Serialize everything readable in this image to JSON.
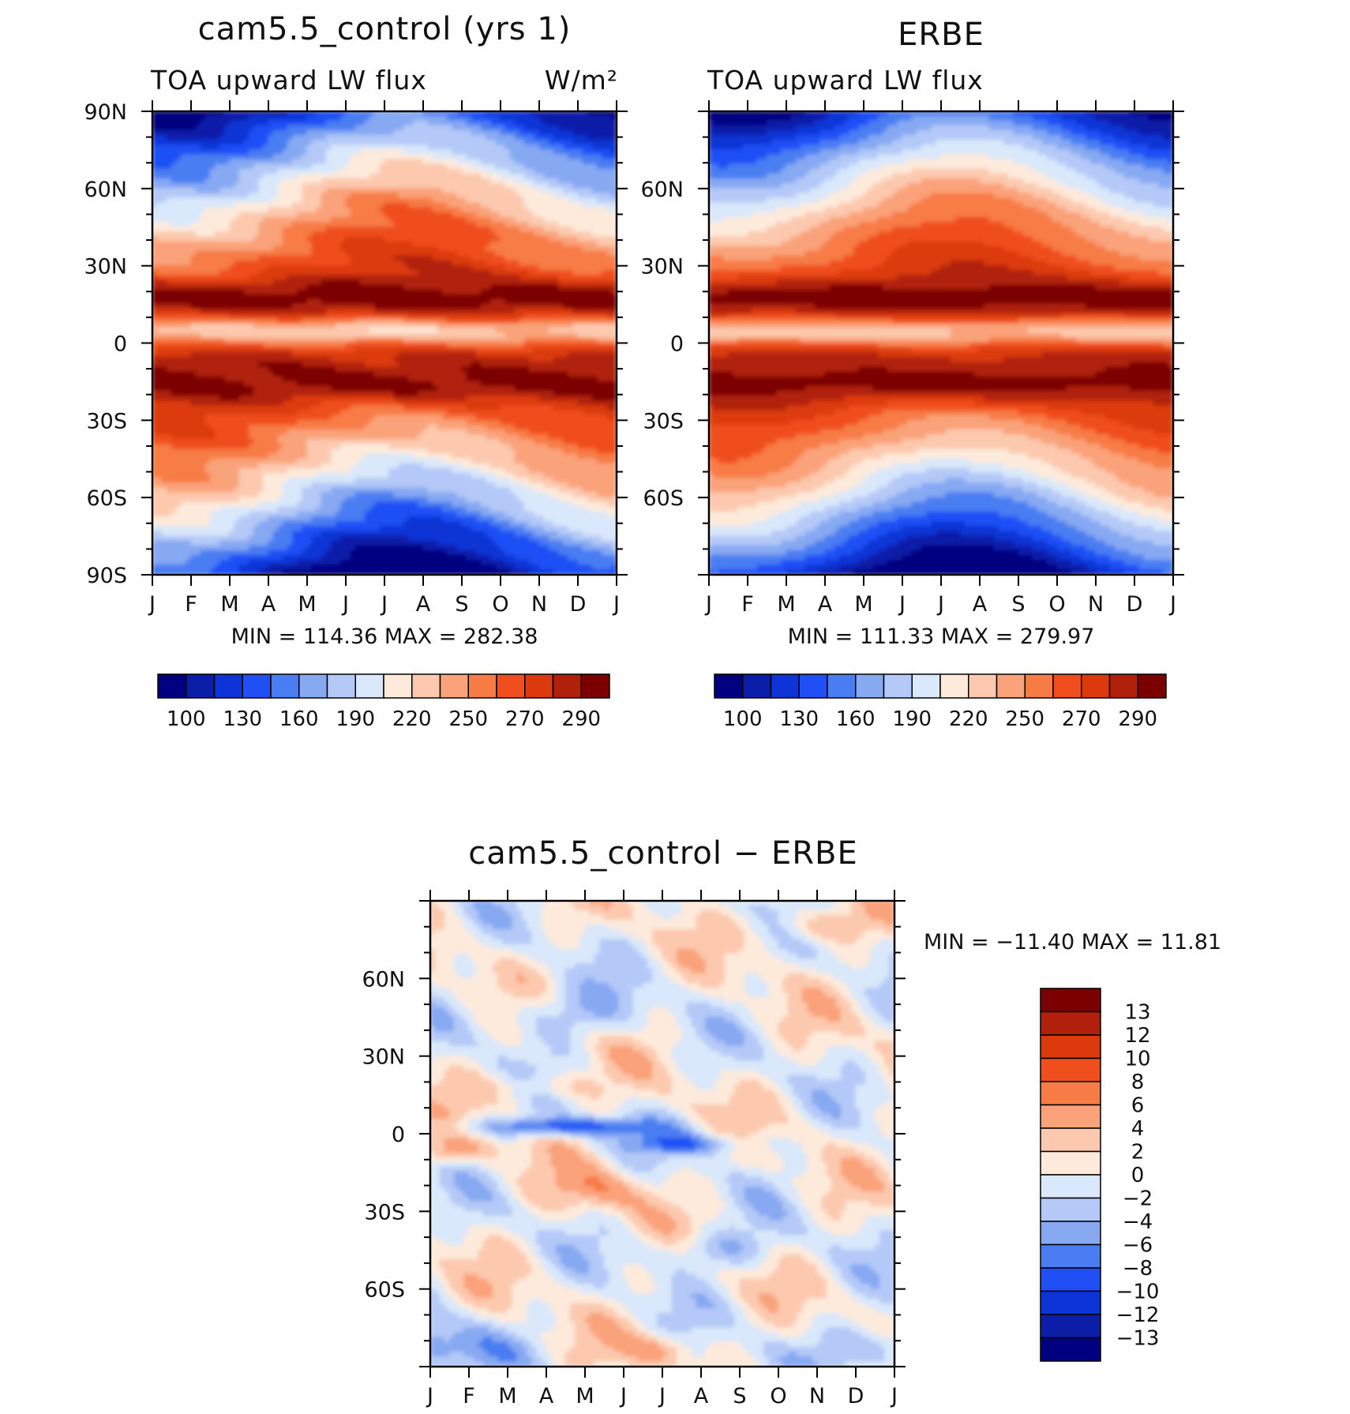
{
  "palette": [
    "#000080",
    "#0A1EA8",
    "#0D34D6",
    "#1F4FF5",
    "#4A7DF2",
    "#86A9F2",
    "#B4C9F7",
    "#D9E8FA",
    "#FDEADB",
    "#FCC9AE",
    "#FAA279",
    "#F77B45",
    "#F04E1D",
    "#DC3A0D",
    "#B0200B",
    "#7B0000"
  ],
  "chart_data": [
    {
      "type": "heatmap",
      "title": "cam5.5_control (yrs 1)",
      "left_label": "TOA upward LW flux",
      "right_label": "W/m²",
      "x_ticks": [
        "J",
        "F",
        "M",
        "A",
        "M",
        "J",
        "J",
        "A",
        "S",
        "O",
        "N",
        "D",
        "J"
      ],
      "y_ticks": [
        "90N",
        "60N",
        "30N",
        "0",
        "30S",
        "60S",
        "90S"
      ],
      "ylim": [
        -90,
        90
      ],
      "stats": "MIN = 114.36 MAX = 282.38",
      "min": 114.36,
      "max": 282.38,
      "colorbar_levels": [
        100,
        110,
        130,
        140,
        160,
        175,
        190,
        200,
        220,
        230,
        250,
        260,
        270,
        280,
        290
      ],
      "colorbar_labels": [
        "100",
        "130",
        "160",
        "190",
        "220",
        "250",
        "270",
        "290"
      ],
      "colorbar_orientation": "horizontal"
    },
    {
      "type": "heatmap",
      "title": "ERBE",
      "left_label": "TOA upward LW flux",
      "x_ticks": [
        "J",
        "F",
        "M",
        "A",
        "M",
        "J",
        "J",
        "A",
        "S",
        "O",
        "N",
        "D",
        "J"
      ],
      "y_ticks": [
        "60N",
        "30N",
        "0",
        "30S",
        "60S"
      ],
      "ylim": [
        -90,
        90
      ],
      "stats": "MIN = 111.33 MAX = 279.97",
      "min": 111.33,
      "max": 279.97,
      "colorbar_levels": [
        100,
        110,
        130,
        140,
        160,
        175,
        190,
        200,
        220,
        230,
        250,
        260,
        270,
        280,
        290
      ],
      "colorbar_labels": [
        "100",
        "130",
        "160",
        "190",
        "220",
        "250",
        "270",
        "290"
      ],
      "colorbar_orientation": "horizontal"
    },
    {
      "type": "heatmap",
      "title": "cam5.5_control − ERBE",
      "x_ticks": [
        "J",
        "F",
        "M",
        "A",
        "M",
        "J",
        "J",
        "A",
        "S",
        "O",
        "N",
        "D",
        "J"
      ],
      "y_ticks": [
        "60N",
        "30N",
        "0",
        "30S",
        "60S"
      ],
      "ylim": [
        -90,
        90
      ],
      "stats": "MIN = −11.40 MAX =   11.81",
      "min": -11.4,
      "max": 11.81,
      "colorbar_levels": [
        -13,
        -12,
        -10,
        -8,
        -6,
        -4,
        -2,
        0,
        2,
        4,
        6,
        8,
        10,
        12,
        13
      ],
      "colorbar_labels": [
        "13",
        "12",
        "10",
        "8",
        "6",
        "4",
        "2",
        "0",
        "−2",
        "−4",
        "−6",
        "−8",
        "−10",
        "−12",
        "−13"
      ],
      "colorbar_orientation": "vertical"
    }
  ]
}
